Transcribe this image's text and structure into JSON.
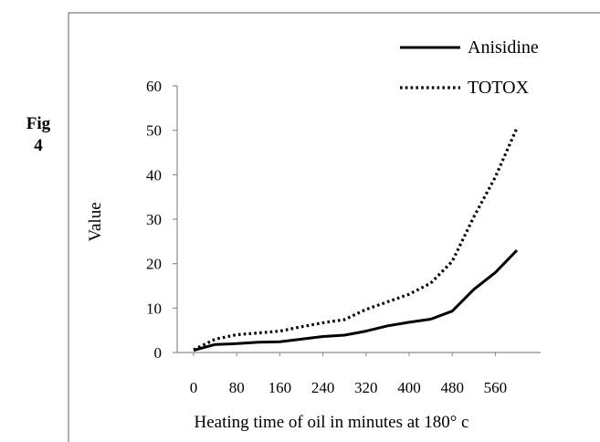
{
  "figure": {
    "label_line1": "Fig",
    "label_line2": "4"
  },
  "chart_data": {
    "type": "line",
    "title": "",
    "xlabel": "Heating time of oil in minutes at 180° c",
    "ylabel": "Value",
    "x": [
      0,
      40,
      80,
      120,
      160,
      200,
      240,
      280,
      320,
      360,
      400,
      440,
      480,
      520,
      560,
      600
    ],
    "xticks": [
      0,
      80,
      160,
      240,
      320,
      400,
      480,
      560
    ],
    "xlim": [
      0,
      600
    ],
    "yticks": [
      0,
      10,
      20,
      30,
      40,
      50,
      60
    ],
    "ylim": [
      0,
      60
    ],
    "grid": false,
    "legend_position": "top-right",
    "series": [
      {
        "name": "Anisidine",
        "style": "solid",
        "color": "#000000",
        "values": [
          0.5,
          1.8,
          2.0,
          2.3,
          2.4,
          3.0,
          3.6,
          3.9,
          4.8,
          6.0,
          6.8,
          7.5,
          9.3,
          14.2,
          18.0,
          23.0
        ]
      },
      {
        "name": "TOTOX",
        "style": "dotted",
        "color": "#000000",
        "values": [
          0.6,
          3.0,
          4.0,
          4.4,
          4.8,
          5.8,
          6.7,
          7.4,
          9.7,
          11.4,
          13.1,
          15.6,
          20.5,
          30.5,
          39.5,
          50.5
        ]
      }
    ]
  }
}
